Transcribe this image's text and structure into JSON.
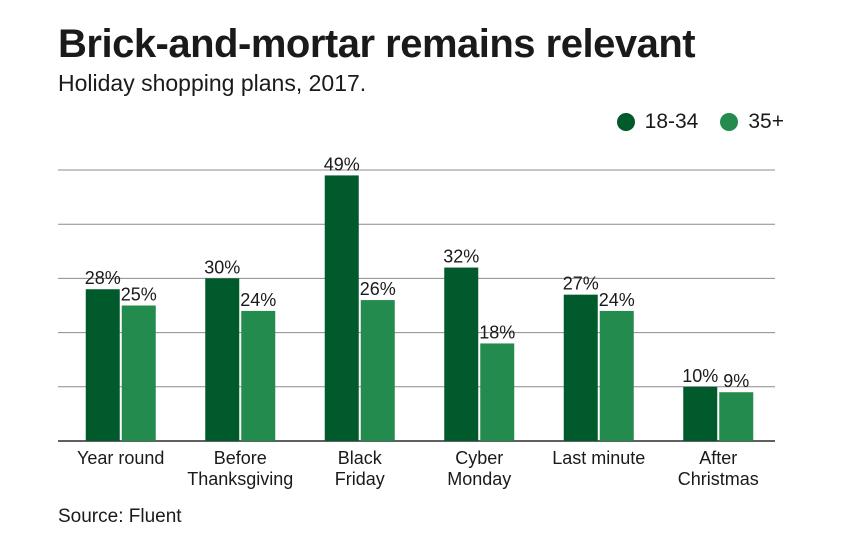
{
  "title": "Brick-and-mortar remains relevant",
  "subtitle": "Holiday shopping plans, 2017.",
  "source": "Source: Fluent",
  "colors": {
    "series_1": "#005a2b",
    "series_2": "#238b4d",
    "grid": "#8c8c8c",
    "axis": "#000000"
  },
  "chart_data": {
    "type": "bar",
    "categories": [
      [
        "Year round"
      ],
      [
        "Before",
        "Thanksgiving"
      ],
      [
        "Black",
        "Friday"
      ],
      [
        "Cyber",
        "Monday"
      ],
      [
        "Last minute"
      ],
      [
        "After",
        "Christmas"
      ]
    ],
    "series": [
      {
        "name": "18-34",
        "values": [
          28,
          30,
          49,
          32,
          27,
          10
        ],
        "labels": [
          "28%",
          "30%",
          "49%",
          "32%",
          "27%",
          "10%"
        ]
      },
      {
        "name": "35+",
        "values": [
          25,
          24,
          26,
          18,
          24,
          9
        ],
        "labels": [
          "25%",
          "24%",
          "26%",
          "18%",
          "24%",
          "9%"
        ]
      }
    ],
    "ylim": [
      0,
      50
    ],
    "grid": true,
    "legend": "top-right"
  }
}
